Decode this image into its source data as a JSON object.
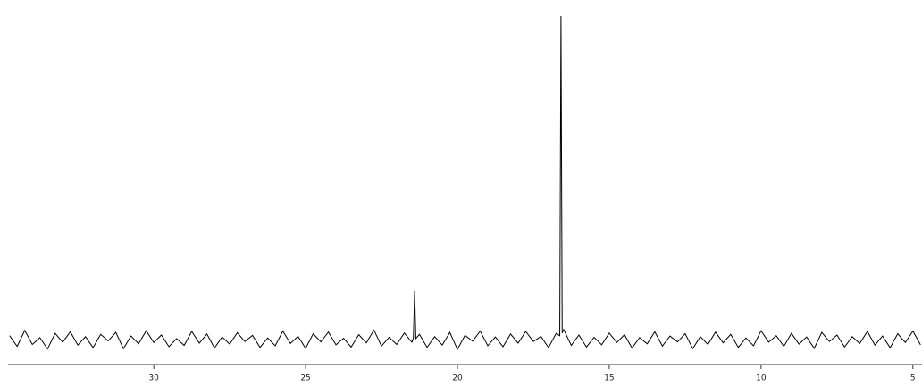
{
  "chart_data": {
    "type": "line",
    "x": [
      34.75,
      34.5,
      34.25,
      34,
      33.75,
      33.5,
      33.25,
      33,
      32.75,
      32.5,
      32.25,
      32,
      31.75,
      31.5,
      31.25,
      31,
      30.75,
      30.5,
      30.25,
      30,
      29.75,
      29.5,
      29.25,
      29,
      28.75,
      28.5,
      28.25,
      28,
      27.75,
      27.5,
      27.25,
      27,
      26.75,
      26.5,
      26.25,
      26,
      25.75,
      25.5,
      25.25,
      25,
      24.75,
      24.5,
      24.25,
      24,
      23.75,
      23.5,
      23.25,
      23,
      22.75,
      22.5,
      22.25,
      22,
      21.75,
      21.5,
      21.45,
      21.41,
      21.37,
      21.25,
      21,
      20.75,
      20.5,
      20.25,
      20,
      19.75,
      19.5,
      19.25,
      19,
      18.75,
      18.5,
      18.25,
      18,
      17.75,
      17.5,
      17.25,
      17,
      16.75,
      16.63,
      16.59,
      16.55,
      16.5,
      16.25,
      16,
      15.75,
      15.5,
      15.25,
      15,
      14.75,
      14.5,
      14.25,
      14,
      13.75,
      13.5,
      13.25,
      13,
      12.75,
      12.5,
      12.25,
      12,
      11.75,
      11.5,
      11.25,
      11,
      10.75,
      10.5,
      10.25,
      10,
      9.75,
      9.5,
      9.25,
      9,
      8.75,
      8.5,
      8.25,
      8,
      7.75,
      7.5,
      7.25,
      7,
      6.75,
      6.5,
      6.25,
      6,
      5.75,
      5.5,
      5.25,
      5,
      4.75
    ],
    "series": [
      {
        "color": "#000000",
        "values": [
          1.2,
          -2.1,
          2.8,
          -1.5,
          0.6,
          -2.9,
          1.9,
          -0.8,
          2.4,
          -1.7,
          0.9,
          -2.5,
          1.6,
          -0.4,
          2.2,
          -2.8,
          1.1,
          -1.3,
          2.7,
          -0.9,
          1.4,
          -2.2,
          0.3,
          -1.8,
          2.5,
          -1.1,
          1.7,
          -2.6,
          0.8,
          -1.4,
          2.1,
          -0.6,
          1.3,
          -2.4,
          0.5,
          -1.9,
          2.6,
          -1.2,
          1.0,
          -2.7,
          1.8,
          -0.7,
          2.3,
          -1.6,
          0.4,
          -2.3,
          1.5,
          -1.0,
          2.9,
          -2.0,
          0.7,
          -1.5,
          2.0,
          -0.8,
          0.5,
          15,
          0.3,
          1.6,
          -2.4,
          0.9,
          -1.7,
          2.2,
          -3.0,
          1.3,
          -0.5,
          2.6,
          -1.9,
          0.8,
          -2.2,
          1.7,
          -1.1,
          2.5,
          -0.6,
          1.0,
          -2.5,
          1.9,
          1.2,
          100,
          2.0,
          3.1,
          -1.8,
          1.4,
          -2.3,
          0.7,
          -1.6,
          2.0,
          -0.9,
          1.5,
          -2.6,
          0.6,
          -1.3,
          2.4,
          -2.0,
          1.1,
          -0.7,
          1.8,
          -2.8,
          0.9,
          -1.5,
          2.3,
          -1.0,
          1.6,
          -2.4,
          0.5,
          -1.9,
          2.7,
          -0.8,
          1.2,
          -2.1,
          1.9,
          -1.4,
          0.8,
          -2.7,
          2.2,
          -0.6,
          1.4,
          -2.3,
          0.9,
          -1.2,
          2.5,
          -1.7,
          1.1,
          -2.5,
          1.8,
          -0.9,
          2.6,
          -1.6
        ]
      }
    ],
    "xlim": [
      34.8,
      4.7
    ],
    "xticks": [
      30,
      25,
      20,
      15,
      10,
      5
    ],
    "ylim": [
      -8,
      100
    ]
  }
}
